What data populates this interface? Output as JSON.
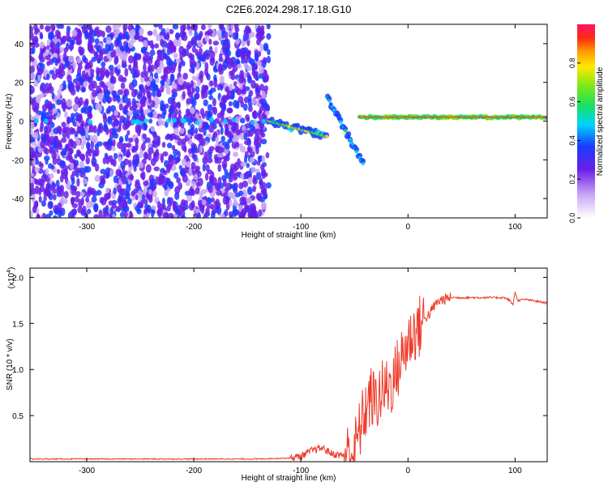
{
  "figure": {
    "title": "C2E6.2024.298.17.18.G10"
  },
  "chart_data": [
    {
      "type": "heatmap",
      "xlabel": "Height of straight line (km)",
      "ylabel": "Frequency (Hz)",
      "xlim": [
        -353,
        130
      ],
      "ylim": [
        -50,
        50
      ],
      "xticks": [
        -300,
        -200,
        -100,
        0,
        100
      ],
      "yticks": [
        -40,
        -20,
        0,
        20,
        40
      ],
      "grid": false,
      "colorbar": {
        "label": "Normalized spectral amplitude",
        "range": [
          0.0,
          1.0
        ],
        "ticks": [
          "0.0",
          "0.2",
          "0.4",
          "0.6",
          "0.8"
        ]
      },
      "features": [
        {
          "x": [
            -353,
            -130
          ],
          "y_center": 0,
          "amplitude": 0.3,
          "kind": "broadband noise"
        },
        {
          "x": [
            -130,
            -75
          ],
          "y_start": 0,
          "y_end": -8,
          "amplitude": 0.7,
          "kind": "drifting line"
        },
        {
          "x": [
            -75,
            -42
          ],
          "y_start": 12,
          "y_end": -22,
          "amplitude": 0.5,
          "kind": "descending branch"
        },
        {
          "x": [
            -45,
            130
          ],
          "y_center": 2,
          "amplitude": 0.95,
          "kind": "steady line"
        }
      ]
    },
    {
      "type": "line",
      "xlabel": "Height of straight line (km)",
      "ylabel": "SNR (10 * v/v)",
      "y_multiplier": "(x10",
      "y_multiplier_exp": "4",
      "y_multiplier_close": ")",
      "xlim": [
        -353,
        130
      ],
      "ylim": [
        0,
        2.1
      ],
      "xticks": [
        -300,
        -200,
        -100,
        0,
        100
      ],
      "yticks": [
        0.5,
        1.0,
        1.5,
        2.0
      ],
      "ytick_labels": [
        "0.5",
        "1.0",
        "1.5",
        "2.0"
      ],
      "color": "#ee3a2a",
      "series": [
        {
          "x": [
            -353,
            -300,
            -200,
            -140,
            -110,
            -100,
            -90,
            -80,
            -70,
            -60,
            -50,
            -45,
            -40,
            -35,
            -30,
            -25,
            -20,
            -15,
            -10,
            -5,
            0,
            5,
            10,
            15,
            20,
            25,
            30,
            40,
            50,
            60,
            70,
            80,
            90,
            95,
            98,
            100,
            102,
            110,
            120,
            130
          ],
          "y": [
            0.03,
            0.03,
            0.03,
            0.03,
            0.04,
            0.06,
            0.12,
            0.15,
            0.08,
            0.07,
            0.12,
            0.35,
            0.55,
            0.7,
            0.65,
            0.75,
            0.8,
            0.85,
            1.0,
            1.15,
            1.3,
            1.4,
            1.45,
            1.55,
            1.6,
            1.7,
            1.75,
            1.78,
            1.78,
            1.78,
            1.78,
            1.78,
            1.78,
            1.75,
            1.7,
            1.85,
            1.75,
            1.76,
            1.74,
            1.72
          ]
        }
      ]
    }
  ]
}
